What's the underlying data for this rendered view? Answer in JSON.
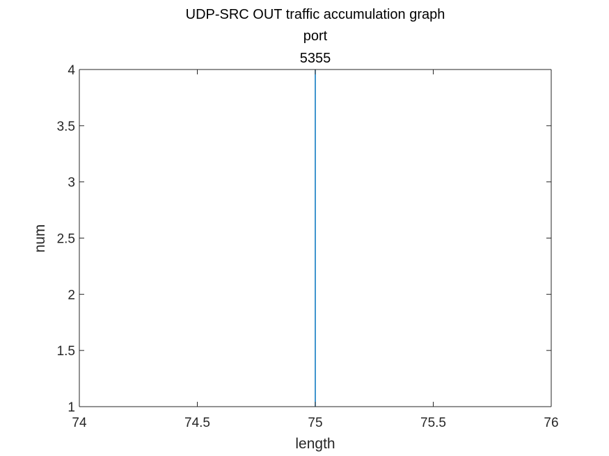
{
  "chart_data": {
    "type": "line",
    "title_lines": [
      "UDP-SRC OUT traffic accumulation graph",
      "port",
      "5355"
    ],
    "xlabel": "length",
    "ylabel": "num",
    "xlim": [
      74,
      76
    ],
    "ylim": [
      1,
      4
    ],
    "xticks": [
      74,
      74.5,
      75,
      75.5,
      76
    ],
    "xtick_labels": [
      "74",
      "74.5",
      "75",
      "75.5",
      "76"
    ],
    "yticks": [
      1,
      1.5,
      2,
      2.5,
      3,
      3.5,
      4
    ],
    "ytick_labels": [
      "1",
      "1.5",
      "2",
      "2.5",
      "3",
      "3.5",
      "4"
    ],
    "grid": false,
    "series": [
      {
        "x": [
          75,
          75
        ],
        "y": [
          1,
          4
        ],
        "color": "#0072BD"
      }
    ]
  }
}
